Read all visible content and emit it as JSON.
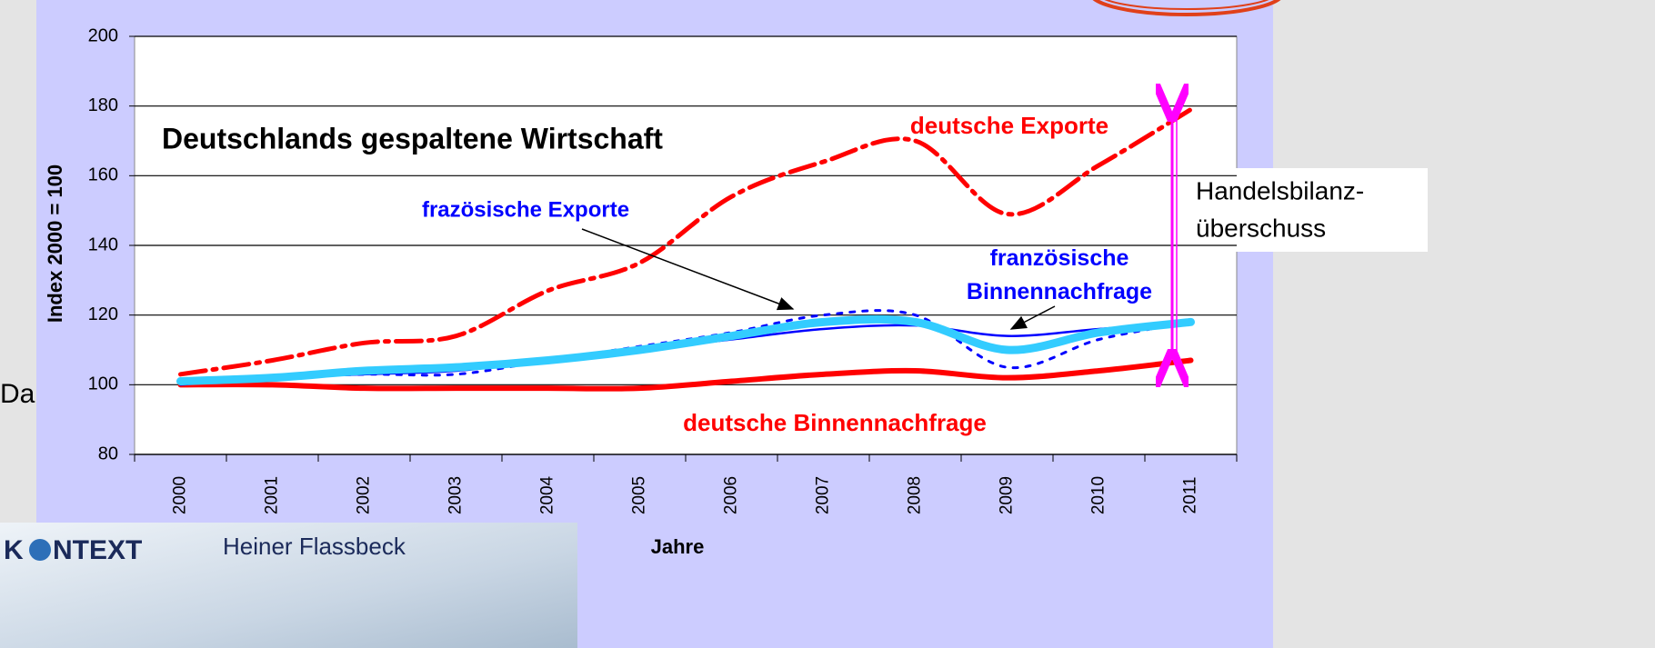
{
  "chart_data": {
    "type": "line",
    "y_label": "Index 2000 = 100",
    "x_label": "Jahre",
    "categories": [
      "2000",
      "2001",
      "2002",
      "2003",
      "2004",
      "2005",
      "2006",
      "2007",
      "2008",
      "2009",
      "2010",
      "2011"
    ],
    "series": [
      {
        "name": "deutsche Exporte",
        "color": "#ff0000",
        "style": "dashdot",
        "values": [
          103,
          107,
          112,
          114,
          127,
          135,
          154,
          164,
          170,
          149,
          163,
          179
        ]
      },
      {
        "name": "frazösische Exporte",
        "color": "#0000ff",
        "style": "dotted",
        "values": [
          101,
          102,
          103,
          103,
          107,
          111,
          115,
          120,
          120,
          105,
          113,
          118
        ]
      },
      {
        "name": "französische Binnennachfrage",
        "color": "#0000ff",
        "style": "solid",
        "values": [
          100,
          102,
          103,
          104,
          107,
          110,
          113,
          116,
          117,
          114,
          116,
          118
        ]
      },
      {
        "color": "#33ccff",
        "style": "solid",
        "values": [
          101,
          102,
          104,
          105,
          107,
          110,
          114,
          118,
          118,
          110,
          115,
          118
        ]
      },
      {
        "name": "deutsche Binnennachfrage",
        "color": "#ff0000",
        "style": "solid",
        "values": [
          100,
          100,
          99,
          99,
          99,
          99,
          101,
          103,
          104,
          102,
          104,
          107
        ]
      }
    ],
    "ylim": [
      80,
      200
    ],
    "yticks": [
      80,
      100,
      120,
      140,
      160,
      180,
      200
    ],
    "grid": true,
    "annotations": [
      "Deutschlands gespaltene Wirtschaft",
      "Handelsbilanz-",
      "überschuss"
    ]
  },
  "slide": {
    "fragment": "Da",
    "logo_left": "K",
    "logo_right": "NTEXT",
    "author": "Heiner Flassbeck"
  }
}
